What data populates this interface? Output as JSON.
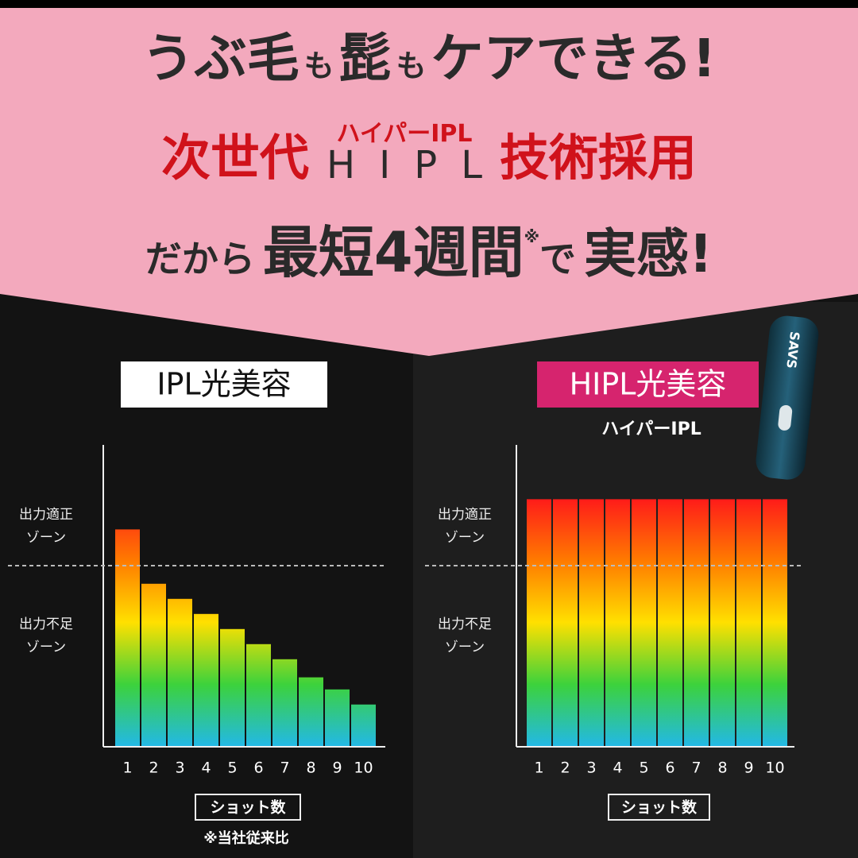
{
  "header": {
    "line1": [
      "うぶ毛",
      "も",
      "髭",
      "も",
      "ケアできる!"
    ],
    "line2": {
      "left": "次世代",
      "ruby": "ハイパーIPL",
      "main": "HIPL",
      "right": "技術採用"
    },
    "line3": [
      "だから",
      "最短4週間",
      "※",
      "で",
      "実感!"
    ]
  },
  "device": {
    "logo": "SAVS"
  },
  "chart_data": [
    {
      "type": "bar",
      "title": "IPL光美容",
      "title_background": "#ffffff",
      "title_color": "#111111",
      "categories": [
        "1",
        "2",
        "3",
        "4",
        "5",
        "6",
        "7",
        "8",
        "9",
        "10"
      ],
      "values": [
        72,
        54,
        49,
        44,
        39,
        34,
        29,
        23,
        19,
        14
      ],
      "colors": [
        "#ff1a1a",
        "#ff7a00",
        "#ffe000",
        "#3cd23c",
        "#22b8e8"
      ],
      "ylim": [
        0,
        100
      ],
      "threshold": 60,
      "zones": [
        [
          "出力適正",
          "ゾーン"
        ],
        [
          "出力不足",
          "ゾーン"
        ]
      ],
      "xlabel": "ショット数",
      "note": "※当社従来比"
    },
    {
      "type": "bar",
      "title": "HIPL光美容",
      "subtitle": "ハイパーIPL",
      "title_background": "#d6246e",
      "title_color": "#ffffff",
      "categories": [
        "1",
        "2",
        "3",
        "4",
        "5",
        "6",
        "7",
        "8",
        "9",
        "10"
      ],
      "values": [
        82,
        82,
        82,
        82,
        82,
        82,
        82,
        82,
        82,
        82
      ],
      "colors": [
        "#ff1a1a",
        "#ff7a00",
        "#ffe000",
        "#3cd23c",
        "#22b8e8"
      ],
      "ylim": [
        0,
        100
      ],
      "threshold": 60,
      "zones": [
        [
          "出力適正",
          "ゾーン"
        ],
        [
          "出力不足",
          "ゾーン"
        ]
      ],
      "xlabel": "ショット数"
    }
  ]
}
